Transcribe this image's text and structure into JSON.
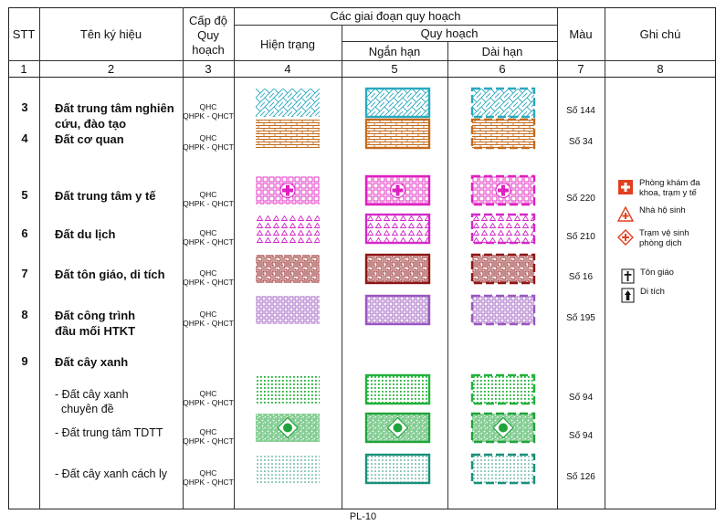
{
  "header": {
    "stt": "STT",
    "ten": "Tên ký hiệu",
    "cap_do": [
      "Cấp độ",
      "Quy",
      "hoạch"
    ],
    "giai_doan": "Các giai đoạn quy hoạch",
    "hien_trang": "Hiện trạng",
    "quy_hoach": "Quy hoạch",
    "ngan_han": "Ngắn hạn",
    "dai_han": "Dài hạn",
    "mau": "Màu",
    "ghi_chu": "Ghi chú",
    "col_numbers": [
      "1",
      "2",
      "3",
      "4",
      "5",
      "6",
      "7",
      "8"
    ]
  },
  "level_text": [
    "QHC",
    "QHPK - QHCT"
  ],
  "rows": [
    {
      "stt": "3",
      "name": [
        "Đất trung tâm nghiên",
        "cứu, đào tạo"
      ],
      "mau": "Số 144",
      "color": "#2aa9bf",
      "pattern": "herringbone"
    },
    {
      "stt": "4",
      "name": [
        "Đất cơ quan"
      ],
      "mau": "Số 34",
      "color": "#c46a1a",
      "pattern": "brick"
    },
    {
      "stt": "5",
      "name": [
        "Đất trung tâm y tế"
      ],
      "mau": "Số 220",
      "color": "#e020c0",
      "pattern": "grid-cross"
    },
    {
      "stt": "6",
      "name": [
        "Đất du lịch"
      ],
      "mau": "Số 210",
      "color": "#d428c8",
      "pattern": "triangles"
    },
    {
      "stt": "7",
      "name": [
        "Đất tôn giáo, di tích"
      ],
      "mau": "Số 16",
      "color": "#8e1616",
      "pattern": "meander"
    },
    {
      "stt": "8",
      "name": [
        "Đất công trình",
        "đầu mối HTKT"
      ],
      "mau": "Số 195",
      "color": "#9a56c0",
      "pattern": "squares"
    },
    {
      "stt": "9",
      "name": [
        "Đất cây xanh"
      ],
      "mau": "",
      "color": "",
      "pattern": "none"
    },
    {
      "stt": "",
      "name": [
        "- Đất cây xanh",
        "  chuyên đề"
      ],
      "mau": "Số 94",
      "color": "#22b13a",
      "pattern": "dots-grid"
    },
    {
      "stt": "",
      "name": [
        "- Đất trung tâm TDTT"
      ],
      "mau": "Số 94",
      "color": "#1fa33a",
      "pattern": "speckle-emblem"
    },
    {
      "stt": "",
      "name": [
        "- Đất cây xanh cách ly"
      ],
      "mau": "Số 126",
      "color": "#19907a",
      "pattern": "fine-dots"
    }
  ],
  "notes": [
    {
      "icon": "cross-square-icon",
      "text": [
        "Phòng khám đa",
        "khoa, trạm y tế"
      ]
    },
    {
      "icon": "cross-triangle-icon",
      "text": [
        "Nhà hộ sinh"
      ]
    },
    {
      "icon": "cross-diamond-icon",
      "text": [
        "Trạm vệ sinh",
        "phòng dịch"
      ]
    },
    {
      "icon": "church-icon",
      "text": [
        "Tôn giáo"
      ]
    },
    {
      "icon": "monument-icon",
      "text": [
        "Di tích"
      ]
    }
  ],
  "footer": "PL-10",
  "colors": {
    "line": "#333333",
    "medical": "#e04020"
  }
}
